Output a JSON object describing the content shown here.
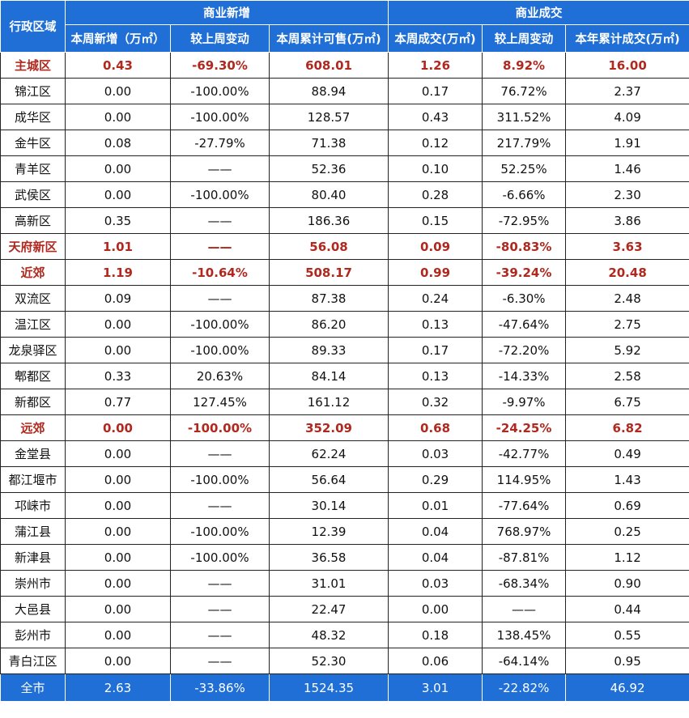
{
  "headers": {
    "region": "行政区域",
    "group_new": "商业新增",
    "group_deal": "商业成交",
    "cols": [
      "本周新增（万㎡）",
      "较上周变动",
      "本周累计可售(万㎡)",
      "本周成交(万㎡)",
      "较上周变动",
      "本年累计成交(万㎡)"
    ]
  },
  "rows": [
    {
      "summary": true,
      "cells": [
        "主城区",
        "0.43",
        "-69.30%",
        "608.01",
        "1.26",
        "8.92%",
        "16.00"
      ]
    },
    {
      "summary": false,
      "cells": [
        "锦江区",
        "0.00",
        "-100.00%",
        "88.94",
        "0.17",
        "76.72%",
        "2.37"
      ]
    },
    {
      "summary": false,
      "cells": [
        "成华区",
        "0.00",
        "-100.00%",
        "128.57",
        "0.43",
        "311.52%",
        "4.09"
      ]
    },
    {
      "summary": false,
      "cells": [
        "金牛区",
        "0.08",
        "-27.79%",
        "71.38",
        "0.12",
        "217.79%",
        "1.91"
      ]
    },
    {
      "summary": false,
      "cells": [
        "青羊区",
        "0.00",
        "——",
        "52.36",
        "0.10",
        "52.25%",
        "1.46"
      ]
    },
    {
      "summary": false,
      "cells": [
        "武侯区",
        "0.00",
        "-100.00%",
        "80.40",
        "0.28",
        "-6.66%",
        "2.30"
      ]
    },
    {
      "summary": false,
      "cells": [
        "高新区",
        "0.35",
        "——",
        "186.36",
        "0.15",
        "-72.95%",
        "3.86"
      ]
    },
    {
      "summary": true,
      "cells": [
        "天府新区",
        "1.01",
        "——",
        "56.08",
        "0.09",
        "-80.83%",
        "3.63"
      ]
    },
    {
      "summary": true,
      "cells": [
        "近郊",
        "1.19",
        "-10.64%",
        "508.17",
        "0.99",
        "-39.24%",
        "20.48"
      ]
    },
    {
      "summary": false,
      "cells": [
        "双流区",
        "0.09",
        "——",
        "87.38",
        "0.24",
        "-6.30%",
        "2.48"
      ]
    },
    {
      "summary": false,
      "cells": [
        "温江区",
        "0.00",
        "-100.00%",
        "86.20",
        "0.13",
        "-47.64%",
        "2.75"
      ]
    },
    {
      "summary": false,
      "cells": [
        "龙泉驿区",
        "0.00",
        "-100.00%",
        "89.33",
        "0.17",
        "-72.20%",
        "5.92"
      ]
    },
    {
      "summary": false,
      "cells": [
        "郫都区",
        "0.33",
        "20.63%",
        "84.14",
        "0.13",
        "-14.33%",
        "2.58"
      ]
    },
    {
      "summary": false,
      "cells": [
        "新都区",
        "0.77",
        "127.45%",
        "161.12",
        "0.32",
        "-9.97%",
        "6.75"
      ]
    },
    {
      "summary": true,
      "cells": [
        "远郊",
        "0.00",
        "-100.00%",
        "352.09",
        "0.68",
        "-24.25%",
        "6.82"
      ]
    },
    {
      "summary": false,
      "cells": [
        "金堂县",
        "0.00",
        "——",
        "62.24",
        "0.03",
        "-42.77%",
        "0.49"
      ]
    },
    {
      "summary": false,
      "cells": [
        "都江堰市",
        "0.00",
        "-100.00%",
        "56.64",
        "0.29",
        "114.95%",
        "1.43"
      ]
    },
    {
      "summary": false,
      "cells": [
        "邛崃市",
        "0.00",
        "——",
        "30.14",
        "0.01",
        "-77.64%",
        "0.69"
      ]
    },
    {
      "summary": false,
      "cells": [
        "蒲江县",
        "0.00",
        "-100.00%",
        "12.39",
        "0.04",
        "768.97%",
        "0.25"
      ]
    },
    {
      "summary": false,
      "cells": [
        "新津县",
        "0.00",
        "-100.00%",
        "36.58",
        "0.04",
        "-87.81%",
        "1.12"
      ]
    },
    {
      "summary": false,
      "cells": [
        "崇州市",
        "0.00",
        "——",
        "31.01",
        "0.03",
        "-68.34%",
        "0.90"
      ]
    },
    {
      "summary": false,
      "cells": [
        "大邑县",
        "0.00",
        "——",
        "22.47",
        "0.00",
        "——",
        "0.44"
      ]
    },
    {
      "summary": false,
      "cells": [
        "彭州市",
        "0.00",
        "——",
        "48.32",
        "0.18",
        "138.45%",
        "0.55"
      ]
    },
    {
      "summary": false,
      "cells": [
        "青白江区",
        "0.00",
        "——",
        "52.30",
        "0.06",
        "-64.14%",
        "0.95"
      ]
    }
  ],
  "total": [
    "全市",
    "2.63",
    "-33.86%",
    "1524.35",
    "3.01",
    "-22.82%",
    "46.92"
  ]
}
